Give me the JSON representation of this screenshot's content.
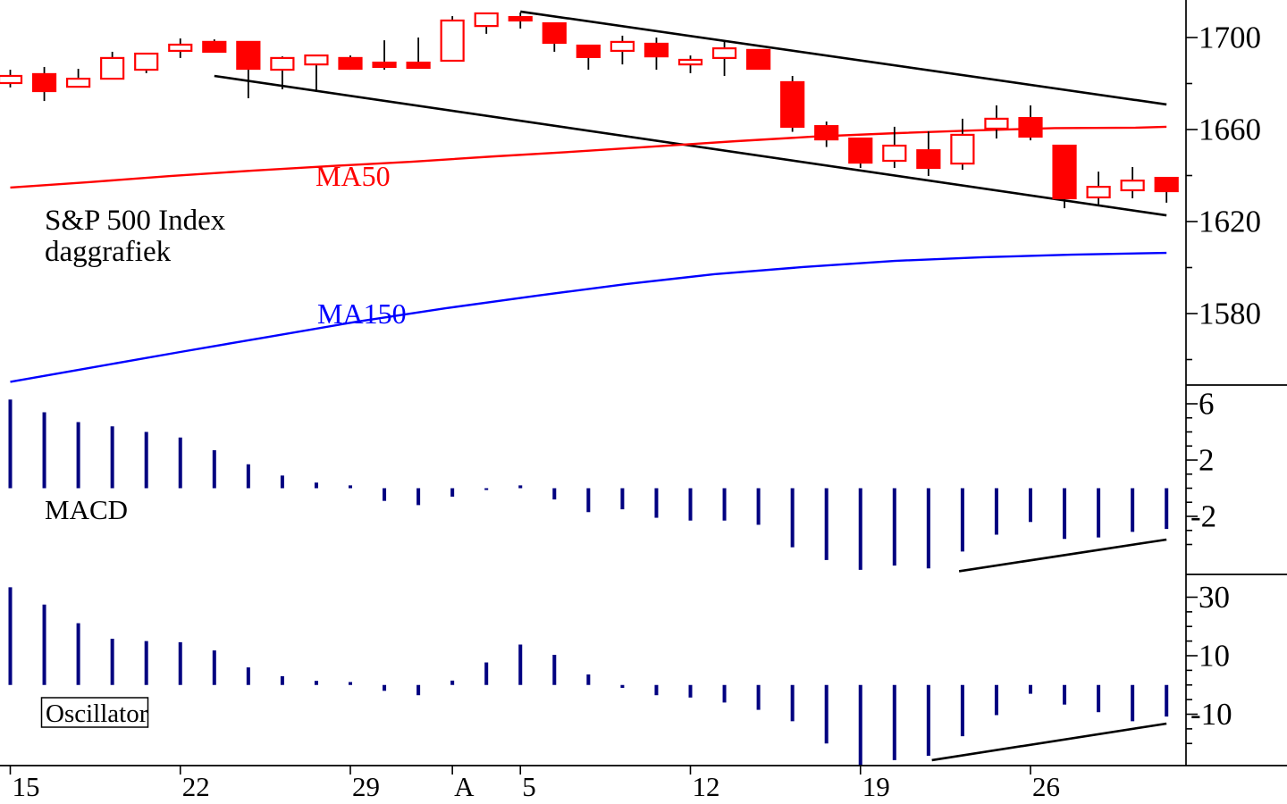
{
  "window": {
    "background": "#ffffff"
  },
  "titles": {
    "instrument": "S&P 500 Index",
    "timeframe": "daggrafiek"
  },
  "labels": {
    "ma50": "MA50",
    "ma150": "MA150",
    "macd": "MACD",
    "oscillator": "Oscillator"
  },
  "colors": {
    "candle_red": "#ff0000",
    "candle_up_fill": "#ffffff",
    "ma50_line": "#ff0000",
    "ma150_line": "#0000ff",
    "histogram_bar": "#000080",
    "trendline": "#000000",
    "axis": "#000000",
    "text": "#000000"
  },
  "x_axis": {
    "tick_labels": [
      {
        "i": 0,
        "label": "15"
      },
      {
        "i": 5,
        "label": "22"
      },
      {
        "i": 10,
        "label": "29"
      },
      {
        "i": 13,
        "label": "A"
      },
      {
        "i": 15,
        "label": "5"
      },
      {
        "i": 20,
        "label": "12"
      },
      {
        "i": 25,
        "label": "19"
      },
      {
        "i": 30,
        "label": "26"
      }
    ]
  },
  "chart_data": [
    {
      "type": "candlestick",
      "panel": "price",
      "title": "S&P 500 Index daggrafiek",
      "ylim": [
        1549,
        1716
      ],
      "y_ticks_major": [
        1700,
        1660,
        1620,
        1580
      ],
      "y_ticks_minor": [
        1680,
        1640,
        1600,
        1560
      ],
      "grid": false,
      "ohlc": [
        [
          1680.2,
          1686.0,
          1678.3,
          1683.3
        ],
        [
          1684.1,
          1687.2,
          1672.4,
          1676.7
        ],
        [
          1678.6,
          1686.4,
          1678.6,
          1682.1
        ],
        [
          1682.1,
          1693.8,
          1682.1,
          1691.1
        ],
        [
          1686.0,
          1693.0,
          1684.5,
          1693.0
        ],
        [
          1694.2,
          1699.6,
          1691.1,
          1696.9
        ],
        [
          1698.1,
          1699.2,
          1693.8,
          1693.8
        ],
        [
          1698.1,
          1698.1,
          1673.6,
          1686.4
        ],
        [
          1686.0,
          1691.8,
          1677.5,
          1691.1
        ],
        [
          1688.3,
          1692.2,
          1676.3,
          1692.2
        ],
        [
          1691.1,
          1692.2,
          1686.0,
          1686.4
        ],
        [
          1689.1,
          1698.8,
          1686.0,
          1687.2
        ],
        [
          1689.1,
          1700.0,
          1686.8,
          1686.8
        ],
        [
          1689.9,
          1709.3,
          1689.9,
          1707.4
        ],
        [
          1705.0,
          1710.5,
          1701.6,
          1710.5
        ],
        [
          1708.9,
          1710.9,
          1703.9,
          1707.4
        ],
        [
          1706.2,
          1706.2,
          1693.8,
          1697.7
        ],
        [
          1696.5,
          1696.5,
          1686.0,
          1691.5
        ],
        [
          1694.2,
          1700.8,
          1688.3,
          1698.1
        ],
        [
          1697.3,
          1700.0,
          1686.0,
          1691.8
        ],
        [
          1688.3,
          1692.2,
          1684.5,
          1690.3
        ],
        [
          1691.1,
          1698.1,
          1683.3,
          1695.3
        ],
        [
          1694.6,
          1694.6,
          1686.4,
          1686.4
        ],
        [
          1680.6,
          1683.3,
          1659.0,
          1661.2
        ],
        [
          1661.5,
          1663.5,
          1652.4,
          1655.7
        ],
        [
          1656.1,
          1656.1,
          1643.3,
          1645.6
        ],
        [
          1646.4,
          1661.2,
          1643.3,
          1653.0
        ],
        [
          1651.0,
          1659.2,
          1639.8,
          1643.3
        ],
        [
          1645.2,
          1664.7,
          1642.5,
          1657.7
        ],
        [
          1660.4,
          1670.5,
          1656.1,
          1664.7
        ],
        [
          1665.0,
          1670.5,
          1655.3,
          1656.9
        ],
        [
          1653.0,
          1653.0,
          1625.8,
          1630.1
        ],
        [
          1630.5,
          1641.7,
          1627.0,
          1635.1
        ],
        [
          1633.6,
          1643.7,
          1630.1,
          1637.8
        ],
        [
          1639.0,
          1639.0,
          1628.2,
          1633.2
        ]
      ],
      "series": [
        {
          "name": "MA50",
          "color": "#ff0000",
          "points": [
            [
              0,
              1634.8
            ],
            [
              2.3,
              1637.1
            ],
            [
              4.7,
              1639.8
            ],
            [
              7.1,
              1642.1
            ],
            [
              9.4,
              1644.1
            ],
            [
              11.8,
              1646.0
            ],
            [
              14.2,
              1648.3
            ],
            [
              16.5,
              1650.3
            ],
            [
              18.9,
              1652.6
            ],
            [
              21.3,
              1654.9
            ],
            [
              23.6,
              1656.9
            ],
            [
              26.0,
              1658.4
            ],
            [
              28.3,
              1659.6
            ],
            [
              30.7,
              1660.6
            ],
            [
              33.1,
              1660.8
            ],
            [
              34,
              1661.2
            ]
          ]
        },
        {
          "name": "MA150",
          "color": "#0000ff",
          "points": [
            [
              0,
              1550.3
            ],
            [
              2.3,
              1556.3
            ],
            [
              5.0,
              1563.3
            ],
            [
              7.6,
              1569.9
            ],
            [
              10.2,
              1576.5
            ],
            [
              12.8,
              1582.3
            ],
            [
              15.5,
              1587.8
            ],
            [
              18.1,
              1592.8
            ],
            [
              20.7,
              1597.1
            ],
            [
              23.3,
              1600.2
            ],
            [
              26.0,
              1602.9
            ],
            [
              28.6,
              1604.5
            ],
            [
              31.2,
              1605.6
            ],
            [
              34,
              1606.4
            ]
          ]
        }
      ],
      "trendlines": [
        {
          "name": "upper-channel-line",
          "from": [
            15.0,
            1711.3
          ],
          "to": [
            34,
            1670.9
          ]
        },
        {
          "name": "lower-channel-line",
          "from": [
            6.0,
            1683.3
          ],
          "to": [
            34,
            1622.7
          ]
        }
      ]
    },
    {
      "type": "bar",
      "panel": "macd",
      "title": "MACD",
      "ylim": [
        -6.1,
        7.3
      ],
      "y_ticks_major": [
        6,
        2,
        -2
      ],
      "y_ticks_minor": [
        5,
        4,
        3,
        1,
        0,
        -1,
        -3,
        -4
      ],
      "grid": false,
      "values": [
        6.3,
        5.4,
        4.7,
        4.4,
        4.0,
        3.6,
        2.7,
        1.7,
        0.9,
        0.4,
        0.2,
        -0.9,
        -1.2,
        -0.6,
        -0.1,
        0.2,
        -0.8,
        -1.7,
        -1.5,
        -2.1,
        -2.3,
        -2.3,
        -2.6,
        -4.2,
        -5.1,
        -5.8,
        -5.5,
        -5.7,
        -4.5,
        -3.3,
        -2.4,
        -3.6,
        -3.5,
        -3.1,
        -2.9
      ],
      "trendlines": [
        {
          "name": "macd-support-line",
          "from": [
            27.9,
            -5.9
          ],
          "to": [
            34,
            -3.65
          ]
        }
      ]
    },
    {
      "type": "bar",
      "panel": "oscillator",
      "title": "Oscillator",
      "ylim": [
        -27.6,
        37.8
      ],
      "y_ticks_major": [
        30,
        10,
        -10
      ],
      "y_ticks_minor": [
        25,
        20,
        15,
        5,
        0,
        -5,
        -15,
        -20
      ],
      "grid": false,
      "values": [
        33.4,
        27.5,
        21.1,
        15.8,
        15.0,
        14.6,
        11.8,
        6.0,
        3.0,
        1.4,
        1.0,
        -2.0,
        -3.5,
        1.5,
        7.7,
        13.8,
        10.3,
        3.6,
        -1.0,
        -3.5,
        -4.3,
        -6.0,
        -8.5,
        -12.4,
        -20.0,
        -27.7,
        -25.7,
        -24.2,
        -17.5,
        -10.3,
        -3.0,
        -6.7,
        -9.3,
        -12.4,
        -10.8
      ],
      "trendlines": [
        {
          "name": "oscillator-support-line",
          "from": [
            27.1,
            -25.7
          ],
          "to": [
            34,
            -13.2
          ]
        }
      ]
    }
  ]
}
